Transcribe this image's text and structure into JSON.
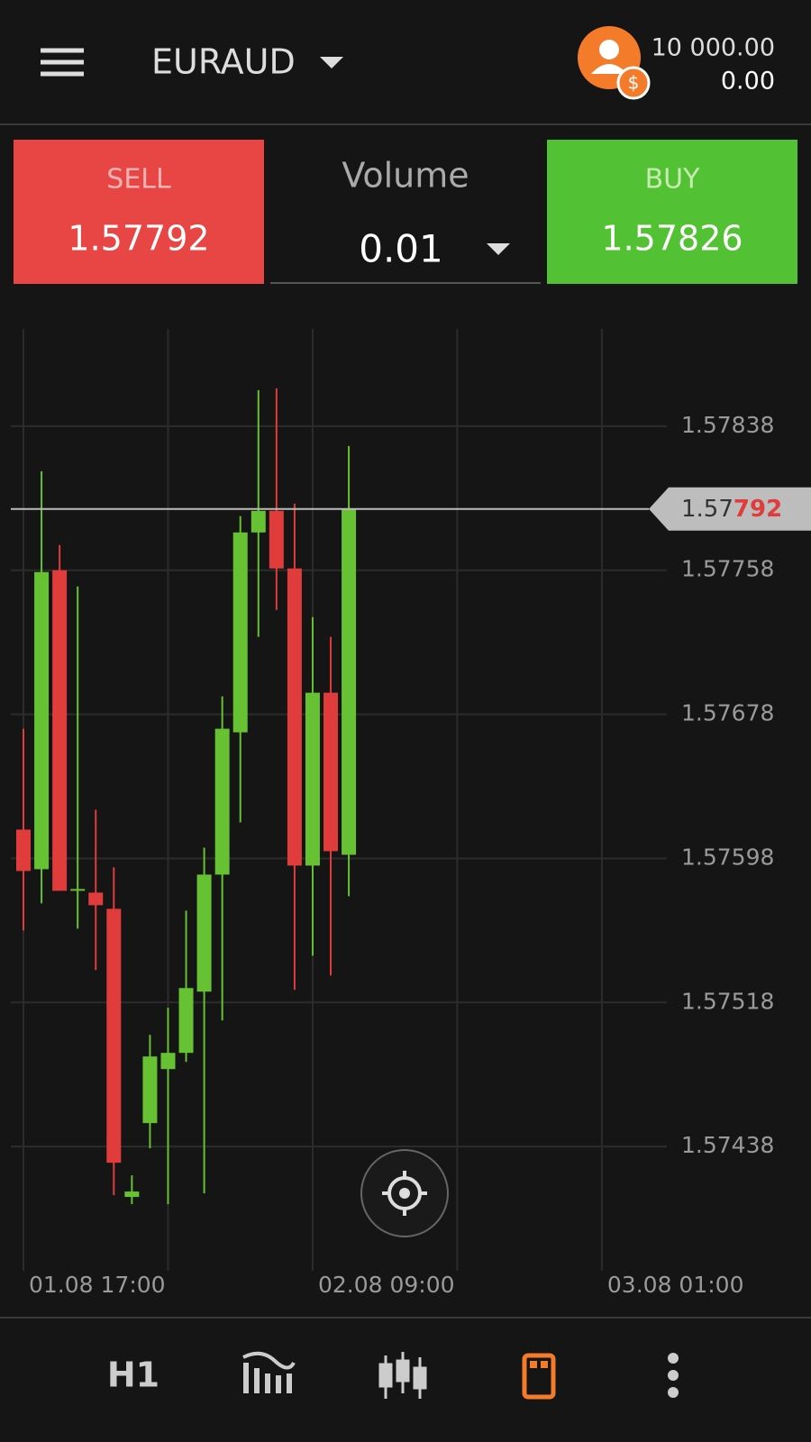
{
  "header": {
    "symbol": "EURAUD",
    "balance": "10 000.00",
    "profit": "0.00"
  },
  "trade": {
    "sell_label": "SELL",
    "sell_price": "1.57792",
    "volume_label": "Volume",
    "volume": "0.01",
    "buy_label": "BUY",
    "buy_price": "1.57826"
  },
  "chart_data": {
    "type": "candlestick",
    "categories": [
      "01.08 17:00",
      null,
      null,
      null,
      null,
      null,
      null,
      null,
      null,
      null,
      null,
      null,
      null,
      null,
      null,
      null,
      "02.08 09:00",
      null,
      null,
      null,
      null,
      null,
      null,
      null,
      null,
      null,
      null,
      null,
      null,
      null,
      null,
      null,
      "03.08 01:00"
    ],
    "open": [
      1.57614,
      1.57592,
      1.57758,
      1.5758,
      1.57579,
      1.5757,
      1.5741,
      1.57451,
      1.57481,
      1.5749,
      1.57524,
      1.57589,
      1.57668,
      1.57779,
      1.57791,
      1.57759,
      1.57594,
      1.5769,
      1.576,
      null,
      null,
      null,
      null,
      null,
      null,
      null,
      null,
      null,
      null,
      null,
      null,
      null,
      null
    ],
    "high": [
      1.5767,
      1.57813,
      1.57772,
      1.57749,
      1.57625,
      1.57593,
      1.57422,
      1.575,
      1.57515,
      1.57569,
      1.57604,
      1.57688,
      1.57788,
      1.57858,
      1.57859,
      1.57795,
      1.57732,
      1.57721,
      1.57827,
      null,
      null,
      null,
      null,
      null,
      null,
      null,
      null,
      null,
      null,
      null,
      null,
      null,
      null
    ],
    "low": [
      1.57558,
      1.57573,
      1.5758,
      1.57559,
      1.57536,
      1.57411,
      1.57406,
      1.57437,
      1.57406,
      1.57485,
      1.57412,
      1.57508,
      1.57618,
      1.57721,
      1.57736,
      1.57525,
      1.57544,
      1.57533,
      1.57577,
      null,
      null,
      null,
      null,
      null,
      null,
      null,
      null,
      null,
      null,
      null,
      null,
      null,
      null
    ],
    "close": [
      1.57591,
      1.57757,
      1.5758,
      1.57581,
      1.57572,
      1.57429,
      1.57413,
      1.57488,
      1.5749,
      1.57526,
      1.57589,
      1.5767,
      1.57779,
      1.57791,
      1.57759,
      1.57594,
      1.5769,
      1.57602,
      1.57792,
      null,
      null,
      null,
      null,
      null,
      null,
      null,
      null,
      null,
      null,
      null,
      null,
      null,
      null
    ],
    "up_color": "#66c133",
    "down_color": "#e03c3c",
    "ylim": [
      1.57369,
      1.57892
    ],
    "yticks": [
      1.57838,
      1.57758,
      1.57678,
      1.57598,
      1.57518,
      1.57438
    ],
    "grid": true,
    "price_line": 1.57792,
    "price_tag": [
      "1.57",
      "792"
    ]
  },
  "toolbar": {
    "timeframe": "H1"
  }
}
